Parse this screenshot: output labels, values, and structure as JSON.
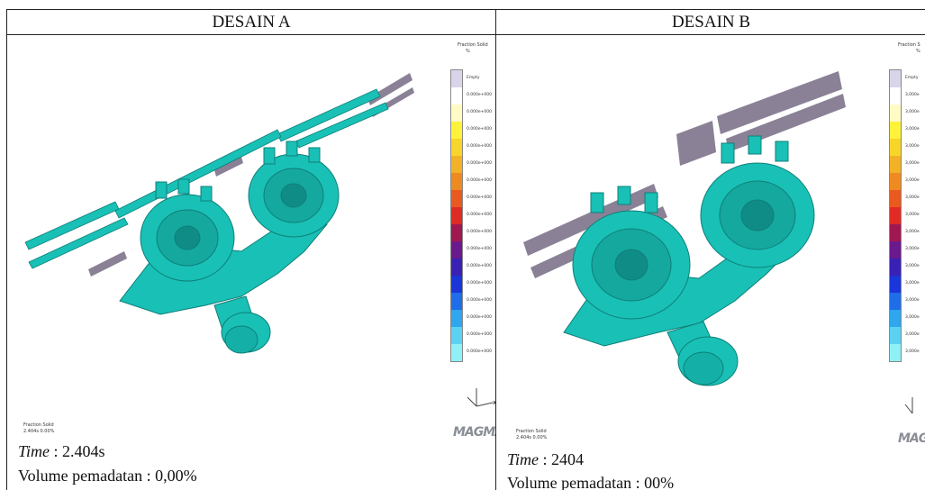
{
  "desain_a": {
    "title": "DESAIN A",
    "legend_title": "Fraction Solid",
    "legend_unit": "%",
    "legend_top_label": "Empty",
    "legend_values": [
      "0.000e+000",
      "0.000e+000",
      "0.000e+000",
      "0.000e+000",
      "0.000e+000",
      "0.000e+000",
      "0.000e+000",
      "0.000e+000",
      "0.000e+000",
      "0.000e+000",
      "0.000e+000",
      "0.000e+000",
      "0.000e+000",
      "0.000e+000",
      "0.000e+000",
      "0.000e+000"
    ],
    "small_label_1": "Fraction Solid",
    "small_label_2": "2.404s 0.00%",
    "time_label": "Time",
    "time_value": " : 2.404s",
    "volume_line": "Volume pemadatan :  0,00%",
    "logo": "MAGMA"
  },
  "desain_b": {
    "title": "DESAIN B",
    "legend_title": "Fraction S",
    "legend_unit": "%",
    "legend_top_label": "Empty",
    "legend_values": [
      "3,000e",
      "3,000e",
      "3,000e",
      "3,000e",
      "3,000e",
      "3,000e",
      "3,000e",
      "3,000e",
      "3,000e",
      "3,000e",
      "3,000e",
      "3,000e",
      "3,000e",
      "3,000e",
      "3,000e",
      "3,000e"
    ],
    "small_label_1": "Fraction Solid",
    "small_label_2": "2.404s 0.00%",
    "time_label": "Time",
    "time_value": " : 2404",
    "volume_line": "Volume pemadatan : 00%",
    "logo": "MAGMA"
  },
  "legend_colors": [
    "#d9d4ea",
    "#ffffff",
    "#fffbc4",
    "#fff23a",
    "#f7d52a",
    "#f2b227",
    "#ee8a22",
    "#e85a1f",
    "#e02b24",
    "#a01850",
    "#6a1a8c",
    "#3a20b4",
    "#1a36d8",
    "#1f6ee8",
    "#2fa6ee",
    "#5cd2f3",
    "#8ff0f6"
  ],
  "casting_color": "#19c0b6",
  "gating_color": "#8a8196"
}
